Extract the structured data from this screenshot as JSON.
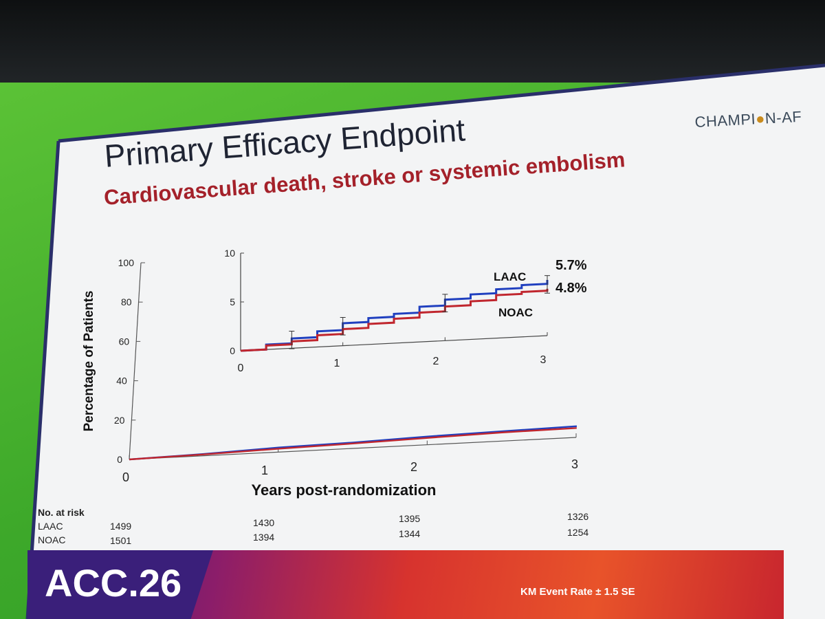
{
  "slide": {
    "title": "Primary Efficacy Endpoint",
    "subtitle": "Cardiovascular death, stroke or systemic embolism",
    "logo_text_left": "CHAMPI",
    "logo_text_right": "N-AF",
    "logo_medal": "●",
    "footer_logo": "ACC.26",
    "footer_note": "KM Event Rate ± 1.5 SE",
    "colors": {
      "laac": "#1f3fbf",
      "noac": "#c0262e",
      "title": "#1f2433",
      "subtitle": "#a4212a"
    }
  },
  "chart_data": [
    {
      "type": "line",
      "title": "",
      "xlabel": "Years post-randomization",
      "ylabel": "Percentage of Patients",
      "xlim": [
        0,
        3
      ],
      "ylim": [
        0,
        100
      ],
      "x_ticks": [
        "0",
        "1",
        "2",
        "3"
      ],
      "y_ticks": [
        "0",
        "20",
        "40",
        "60",
        "80",
        "100"
      ],
      "series": [
        {
          "name": "LAAC",
          "x": [
            0,
            0.5,
            1,
            1.5,
            2,
            2.5,
            3
          ],
          "values": [
            0,
            0.9,
            2.3,
            3.0,
            4.2,
            5.0,
            5.7
          ]
        },
        {
          "name": "NOAC",
          "x": [
            0,
            0.5,
            1,
            1.5,
            2,
            2.5,
            3
          ],
          "values": [
            0,
            0.7,
            1.7,
            2.5,
            3.5,
            4.4,
            4.8
          ]
        }
      ],
      "legend": "none"
    },
    {
      "type": "line",
      "title": "",
      "xlim": [
        0,
        3
      ],
      "ylim": [
        0,
        10
      ],
      "x_ticks": [
        "0",
        "1",
        "2",
        "3"
      ],
      "y_ticks": [
        "0",
        "5",
        "10"
      ],
      "series": [
        {
          "name": "LAAC",
          "x": [
            0,
            0.25,
            0.5,
            0.75,
            1,
            1.25,
            1.5,
            1.75,
            2,
            2.25,
            2.5,
            2.75,
            3
          ],
          "values": [
            0,
            0.5,
            1.0,
            1.6,
            2.3,
            2.7,
            3.0,
            3.6,
            4.2,
            4.6,
            5.0,
            5.3,
            5.7
          ]
        },
        {
          "name": "NOAC",
          "x": [
            0,
            0.25,
            0.5,
            0.75,
            1,
            1.25,
            1.5,
            1.75,
            2,
            2.25,
            2.5,
            2.75,
            3
          ],
          "values": [
            0,
            0.4,
            0.7,
            1.2,
            1.7,
            2.1,
            2.5,
            3.0,
            3.5,
            3.9,
            4.4,
            4.6,
            4.8
          ]
        }
      ],
      "series_labels": [
        "LAAC",
        "NOAC"
      ],
      "end_labels": [
        "5.7%",
        "4.8%"
      ]
    }
  ],
  "risk_table": {
    "header": "No. at risk",
    "rows": [
      {
        "label": "LAAC",
        "values": [
          "1499",
          "1430",
          "1395",
          "1326"
        ]
      },
      {
        "label": "NOAC",
        "values": [
          "1501",
          "1394",
          "1344",
          "1254"
        ]
      }
    ]
  }
}
